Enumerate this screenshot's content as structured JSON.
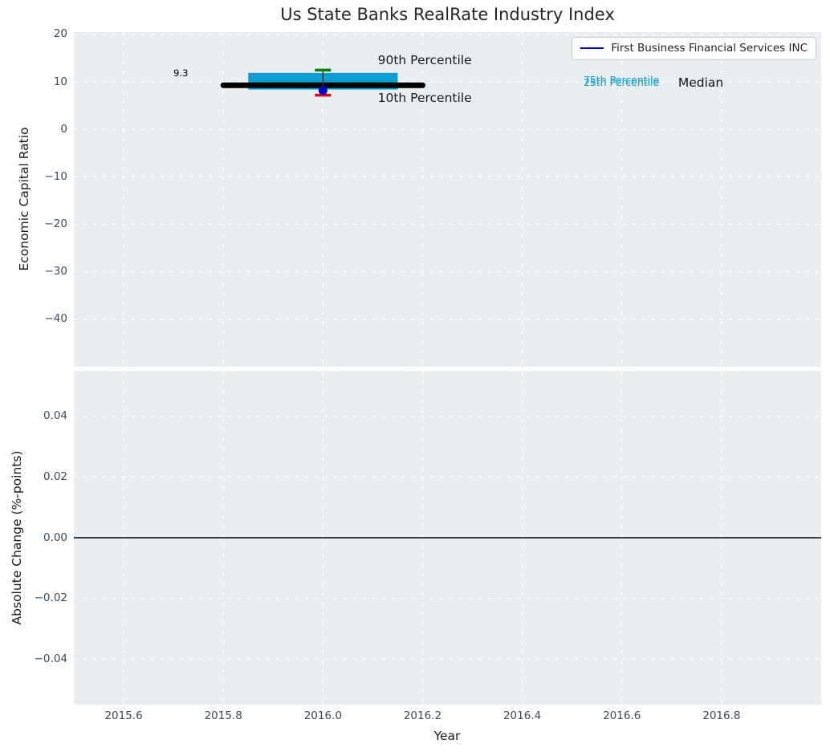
{
  "figure": {
    "title": "Us State Banks RealRate Industry Index",
    "legend": {
      "position": "upper right",
      "entries": [
        {
          "label": "First Business Financial Services INC",
          "color": "#0000dd"
        }
      ]
    },
    "colors": {
      "axes_background": "#e9eef1",
      "grid": "#ffffff",
      "tick_label": "#3d4a59",
      "band_cyan": "#0d9dd3",
      "median_black": "#000000",
      "p90_green": "#008000",
      "p10_red": "#e80000",
      "company_blue": "#0000cc"
    }
  },
  "chart_data": [
    {
      "type": "line",
      "title": "Us State Banks RealRate Industry Index",
      "xlabel": "",
      "ylabel": "Economic Capital Ratio",
      "xlim": [
        2015.5,
        2017.0
      ],
      "ylim": [
        -50,
        20.5
      ],
      "xticks": [
        2015.6,
        2015.8,
        2016.0,
        2016.2,
        2016.4,
        2016.6,
        2016.8
      ],
      "yticks": [
        20,
        10,
        0,
        -10,
        -20,
        -30,
        -40
      ],
      "grid": {
        "visible": true,
        "style": "dashed",
        "color": "#ffffff"
      },
      "legend_entries": [
        "First Business Financial Services INC"
      ],
      "series": {
        "company_point": {
          "name": "First Business Financial Services INC",
          "x": 2016.0,
          "y": 8.2,
          "marker": "circle",
          "color": "#0000cc"
        },
        "median_line": {
          "name": "Median",
          "value": 9.3,
          "x_start": 2015.8,
          "x_end": 2016.2,
          "color": "#000000"
        },
        "iqr_band": {
          "name": "25th-75th Percentile band",
          "x_start": 2015.85,
          "x_end": 2016.15,
          "p25": 8.4,
          "p75": 11.9,
          "color": "#0d9dd3"
        },
        "whisker": {
          "x": 2016.0,
          "p90": 12.5,
          "p10": 7.2,
          "p90_cap_color": "#008000",
          "p10_cap_color": "#e80000",
          "cap_halfwidth": 0.016
        }
      },
      "annotations": [
        {
          "text": "9.3",
          "x": 2015.7,
          "y": 11.7,
          "color": "#000000",
          "size": 11.5
        },
        {
          "text": "90th Percentile",
          "x": 2016.11,
          "y": 14.4,
          "color": "#1a1a1a",
          "size": 15.5
        },
        {
          "text": "10th Percentile",
          "x": 2016.11,
          "y": 6.55,
          "color": "#1a1a1a",
          "size": 15.5
        },
        {
          "text": "75th Percentile",
          "x": 2016.523,
          "y": 10.35,
          "color": "#0d9dd3",
          "size": 12.5
        },
        {
          "text": "25th Percentile",
          "x": 2016.523,
          "y": 9.85,
          "color": "#0d9dd3",
          "size": 12.5
        },
        {
          "text": "Median",
          "x": 2016.713,
          "y": 9.8,
          "color": "#111111",
          "size": 15.5
        }
      ]
    },
    {
      "type": "line",
      "title": "",
      "xlabel": "Year",
      "ylabel": "Absolute Change (%-points)",
      "xlim": [
        2015.5,
        2017.0
      ],
      "ylim": [
        -0.055,
        0.055
      ],
      "xticks": [
        2015.6,
        2015.8,
        2016.0,
        2016.2,
        2016.4,
        2016.6,
        2016.8
      ],
      "yticks": [
        0.04,
        0.02,
        0.0,
        -0.02,
        -0.04
      ],
      "grid": {
        "visible": true,
        "style": "dashed",
        "color": "#ffffff"
      },
      "zero_line": {
        "y": 0.0,
        "color": "#000000"
      }
    }
  ]
}
